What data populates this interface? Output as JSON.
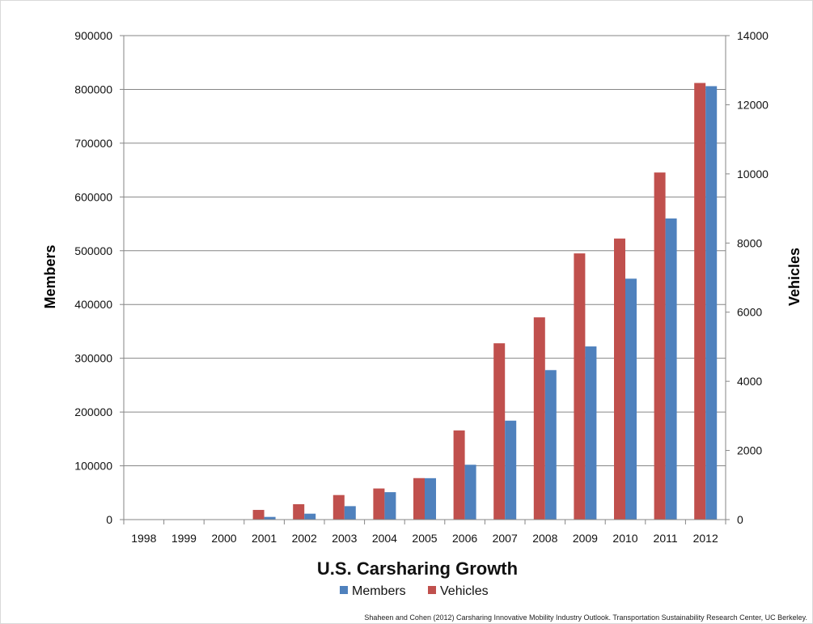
{
  "chart_data": {
    "type": "bar",
    "title": "U.S. Carsharing Growth",
    "categories": [
      "1998",
      "1999",
      "2000",
      "2001",
      "2002",
      "2003",
      "2004",
      "2005",
      "2006",
      "2007",
      "2008",
      "2009",
      "2010",
      "2011",
      "2012"
    ],
    "series": [
      {
        "name": "Vehicles",
        "axis": "right",
        "color": "#c0504d",
        "values": [
          0,
          0,
          0,
          280,
          445,
          710,
          900,
          1200,
          2580,
          5100,
          5850,
          7700,
          8130,
          10040,
          12630
        ]
      },
      {
        "name": "Members",
        "axis": "left",
        "color": "#4f81bd",
        "values": [
          0,
          0,
          0,
          5000,
          11000,
          25000,
          51000,
          77000,
          102000,
          184000,
          278000,
          322000,
          448000,
          560000,
          806000
        ]
      }
    ],
    "ylabel": "Members",
    "y2label": "Vehicles",
    "ylim": [
      0,
      900000
    ],
    "y2lim": [
      0,
      14000
    ],
    "yticks": [
      "0",
      "100000",
      "200000",
      "300000",
      "400000",
      "500000",
      "600000",
      "700000",
      "800000",
      "900000"
    ],
    "y2ticks": [
      "0",
      "2000",
      "4000",
      "6000",
      "8000",
      "10000",
      "12000",
      "14000"
    ],
    "grid": true,
    "legend_position": "bottom",
    "legend": [
      "Members",
      "Vehicles"
    ]
  },
  "source_note": "Shaheen and Cohen (2012) Carsharing Innovative Mobility Industry Outlook. Transportation Sustainability Research Center, UC Berkeley."
}
